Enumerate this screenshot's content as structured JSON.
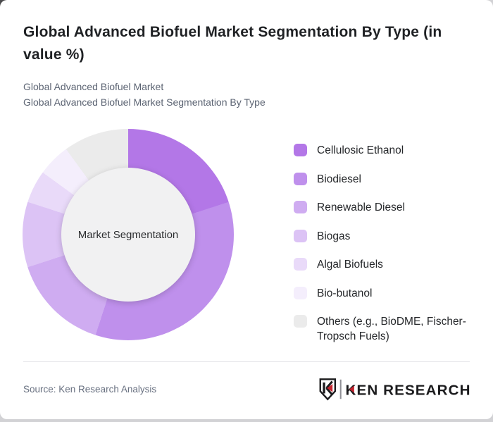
{
  "header": {
    "title": "Global Advanced Biofuel Market Segmentation By Type (in value %)",
    "subtitle_line1": "Global Advanced Biofuel Market",
    "subtitle_line2": "Global Advanced Biofuel Market Segmentation By Type"
  },
  "chart_data": {
    "type": "pie",
    "variant": "donut",
    "title": "Global Advanced Biofuel Market Segmentation By Type (in value %)",
    "unit": "value %",
    "center_label": "Market Segmentation",
    "direction": "clockwise",
    "start_angle_deg": 0,
    "legend_position": "right",
    "categories": [
      "Cellulosic Ethanol",
      "Biodiesel",
      "Renewable Diesel",
      "Biogas",
      "Algal Biofuels",
      "Bio-butanol",
      "Others (e.g., BioDME, Fischer-Tropsch Fuels)"
    ],
    "values": [
      20,
      35,
      15,
      10,
      5,
      5,
      10
    ],
    "colors": [
      "#b377e7",
      "#bf90ec",
      "#cfacf1",
      "#dcc3f5",
      "#e9daf9",
      "#f4eefc",
      "#ebebeb"
    ],
    "center_fill": "#f1f1f2"
  },
  "footer": {
    "source": "Source: Ken Research Analysis",
    "logo_text": "KEN RESEARCH",
    "logo_accent": "#c4242e",
    "logo_ink": "#1b1b1d"
  }
}
